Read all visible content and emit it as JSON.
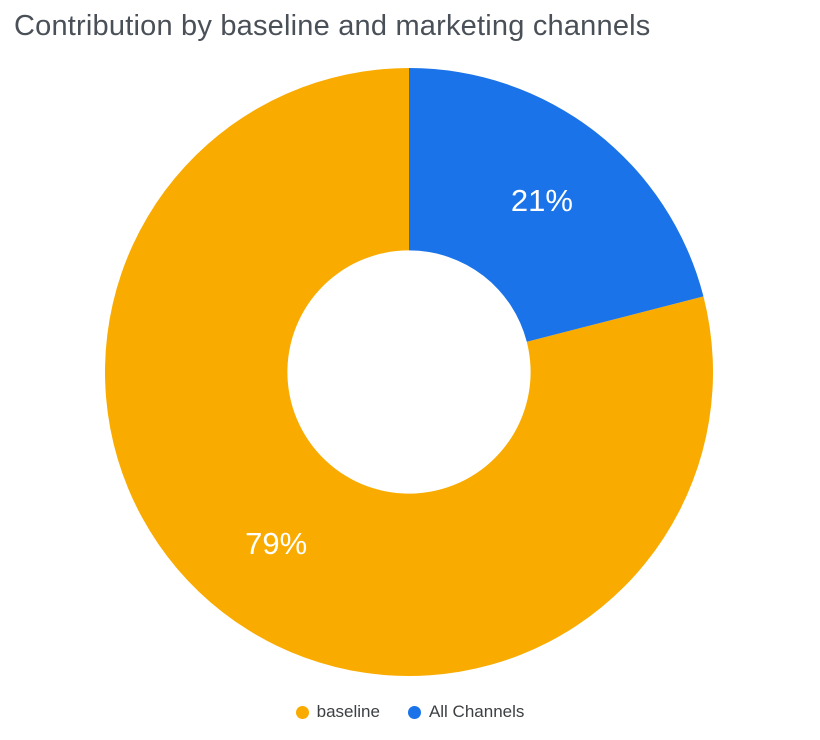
{
  "chart_data": {
    "type": "pie",
    "title": "Contribution by baseline and marketing channels",
    "donut_hole_ratio": 0.4,
    "rotation_start_deg": 0,
    "direction": "counterclockwise",
    "series": [
      {
        "name": "baseline",
        "value": 79,
        "label": "79%",
        "color": "#F9AB00"
      },
      {
        "name": "All Channels",
        "value": 21,
        "label": "21%",
        "color": "#1A73E8"
      }
    ],
    "label_color": "#FFFFFF",
    "legend": {
      "position": "bottom",
      "entries": [
        "baseline",
        "All Channels"
      ]
    },
    "grid": false
  }
}
